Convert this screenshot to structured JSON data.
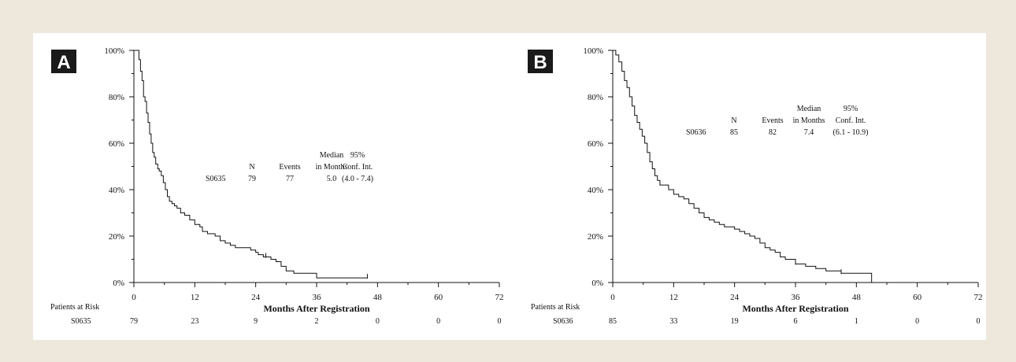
{
  "chart_data": [
    {
      "type": "line",
      "panel_label": "A",
      "xlabel": "Months After Registration",
      "xticks": [
        "0",
        "12",
        "24",
        "36",
        "48",
        "60",
        "72"
      ],
      "yticks": [
        "0%",
        "20%",
        "40%",
        "60%",
        "80%",
        "100%"
      ],
      "xlim": [
        0,
        72
      ],
      "ylim": [
        0,
        100
      ],
      "grid": false,
      "series": [
        {
          "name": "S0635",
          "x": [
            0,
            1,
            1.3,
            1.6,
            1.9,
            2.2,
            2.5,
            2.8,
            3.1,
            3.4,
            3.7,
            4.0,
            4.3,
            4.7,
            5.0,
            5.4,
            5.8,
            6.2,
            6.6,
            7.0,
            7.5,
            8.0,
            8.5,
            9.2,
            10,
            11,
            12,
            13,
            13.5,
            14.5,
            16,
            17,
            18,
            19,
            20,
            21.5,
            23,
            24,
            24.5,
            25.5,
            27,
            28,
            29,
            30,
            31.5,
            33,
            36,
            46
          ],
          "y": [
            100,
            96,
            91,
            87,
            80,
            78,
            73,
            69,
            64,
            60,
            56,
            54,
            51,
            49,
            48,
            46,
            43,
            40,
            37,
            35,
            34,
            33,
            32,
            30,
            29,
            27,
            25,
            24,
            22,
            21,
            20,
            18,
            17,
            16,
            15,
            15,
            14,
            13,
            12,
            11,
            10,
            9,
            7,
            5,
            4,
            4,
            2,
            2
          ],
          "censor_x": [
            26,
            46
          ]
        }
      ],
      "stats_headers": [
        [
          "",
          "",
          "Median",
          "95%"
        ],
        [
          "N",
          "Events",
          "in Months",
          "Conf. Int."
        ]
      ],
      "stats_rows": [
        [
          "S0635",
          "79",
          "77",
          "5.0",
          "(4.0 - 7.4)"
        ]
      ],
      "risk_table": {
        "title": "Patients at Risk",
        "label": "S0635",
        "values": [
          "79",
          "23",
          "9",
          "2",
          "0",
          "0",
          "0"
        ]
      }
    },
    {
      "type": "line",
      "panel_label": "B",
      "xlabel": "Months After Registration",
      "xticks": [
        "0",
        "12",
        "24",
        "36",
        "48",
        "60",
        "72"
      ],
      "yticks": [
        "0%",
        "20%",
        "40%",
        "60%",
        "80%",
        "100%"
      ],
      "xlim": [
        0,
        72
      ],
      "ylim": [
        0,
        100
      ],
      "grid": false,
      "series": [
        {
          "name": "S0636",
          "x": [
            0,
            0.6,
            1.2,
            1.8,
            2.3,
            2.8,
            3.3,
            3.8,
            4.3,
            4.8,
            5.3,
            5.8,
            6.3,
            6.8,
            7.3,
            7.8,
            8.3,
            8.8,
            9.3,
            10,
            11,
            12,
            13,
            14,
            15,
            16,
            17,
            18,
            19,
            20,
            21,
            22,
            23,
            24,
            25,
            26,
            27,
            28,
            29,
            30,
            31,
            32,
            33,
            34,
            36,
            38,
            40,
            42,
            45,
            51
          ],
          "y": [
            100,
            98,
            95,
            91,
            87,
            84,
            80,
            76,
            72,
            69,
            66,
            63,
            60,
            56,
            52,
            49,
            46,
            44,
            42,
            42,
            40,
            38,
            37,
            36,
            34,
            32,
            30,
            28,
            27,
            26,
            25,
            24,
            24,
            23,
            22,
            21,
            20,
            19,
            17,
            15,
            14,
            13,
            11,
            10,
            8,
            7,
            6,
            5,
            4,
            0
          ],
          "censor_x": [
            36,
            45
          ]
        }
      ],
      "stats_headers": [
        [
          "",
          "",
          "Median",
          "95%"
        ],
        [
          "N",
          "Events",
          "in Months",
          "Conf. Int."
        ]
      ],
      "stats_rows": [
        [
          "S0636",
          "85",
          "82",
          "7.4",
          "(6.1 - 10.9)"
        ]
      ],
      "risk_table": {
        "title": "Patients at Risk",
        "label": "S0636",
        "values": [
          "85",
          "33",
          "19",
          "6",
          "1",
          "0",
          "0"
        ]
      }
    }
  ]
}
